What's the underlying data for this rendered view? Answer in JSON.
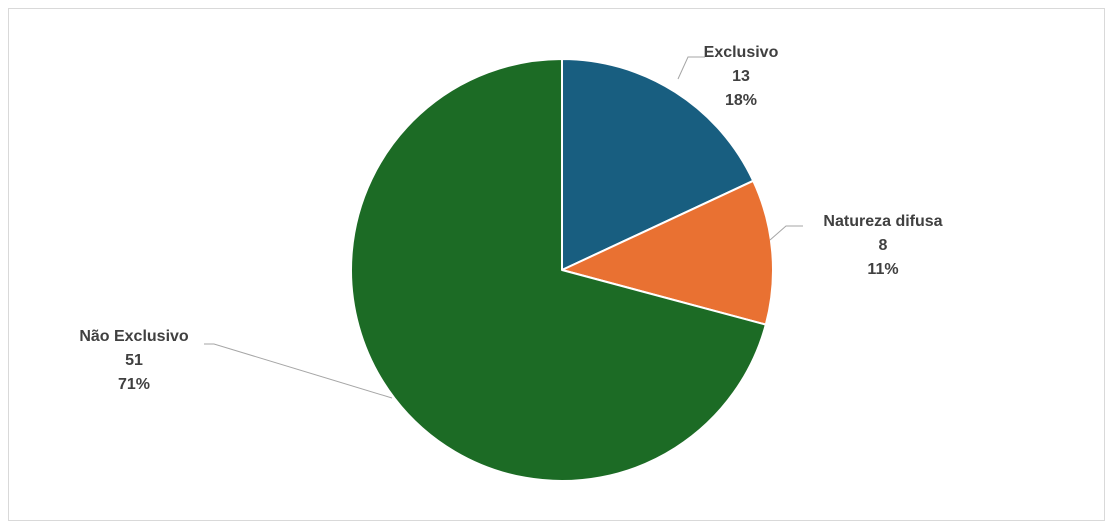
{
  "chart_data": {
    "type": "pie",
    "title": "",
    "slices": [
      {
        "label": "Exclusivo",
        "value": 13,
        "percent": "18%",
        "color": "#185e80"
      },
      {
        "label": "Natureza difusa",
        "value": 8,
        "percent": "11%",
        "color": "#e97132"
      },
      {
        "label": "Não Exclusivo",
        "value": 51,
        "percent": "71%",
        "color": "#1c6b25"
      }
    ],
    "start_angle_deg": 0,
    "direction": "clockwise",
    "legend": "none",
    "data_labels": "outside with leader lines"
  }
}
